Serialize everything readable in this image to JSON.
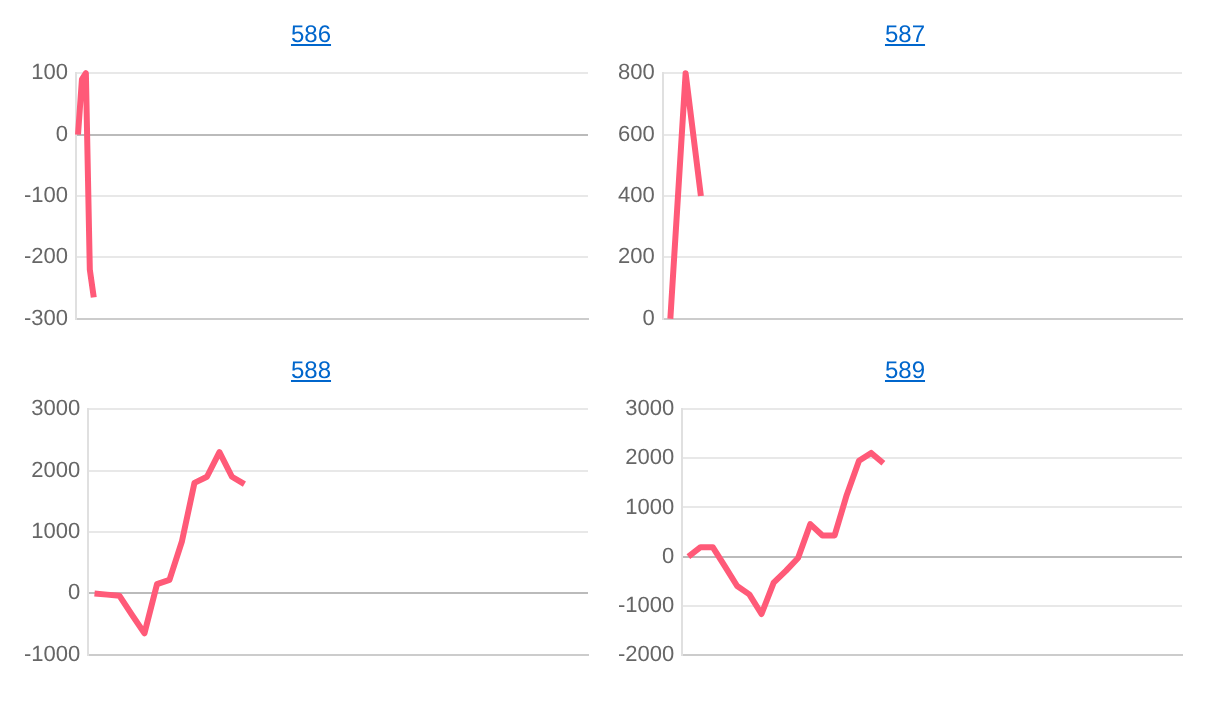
{
  "chart_data": [
    {
      "type": "line",
      "title": "586",
      "categories": [
        null,
        null,
        null,
        null,
        null,
        null,
        null,
        null,
        null,
        null,
        null,
        null,
        null,
        null,
        null,
        null,
        null,
        null,
        null,
        null,
        null,
        null,
        null,
        null,
        null,
        null,
        null,
        null,
        null,
        null,
        null,
        null,
        null,
        null,
        null,
        null,
        null,
        null,
        null,
        null,
        null,
        null,
        null,
        null,
        null,
        null,
        null,
        null,
        null,
        null,
        null,
        null,
        null,
        null,
        null,
        null,
        null,
        null,
        null,
        null,
        null,
        null,
        null,
        null,
        null,
        null,
        null,
        null,
        null,
        null,
        null,
        null,
        null,
        null,
        null,
        null,
        null,
        null,
        null,
        null,
        null,
        null,
        null,
        null,
        null,
        null,
        null,
        null,
        null,
        null,
        null,
        null,
        null,
        null,
        null,
        null,
        null,
        null,
        null,
        null,
        null,
        null,
        null,
        null,
        null,
        null,
        null,
        null,
        null,
        null,
        null,
        null,
        null,
        null,
        null,
        null,
        null,
        null,
        null,
        null,
        null,
        null,
        null,
        null,
        null,
        null,
        null,
        null,
        null,
        null
      ],
      "series": [
        {
          "color": "#ff5a78",
          "values": [
            0,
            90,
            100,
            -220,
            -265,
            null,
            null,
            null,
            null,
            null,
            null,
            null,
            null,
            null,
            null,
            null,
            null,
            null,
            null,
            null,
            null,
            null,
            null,
            null,
            null,
            null,
            null,
            null,
            null,
            null,
            null,
            null,
            null,
            null,
            null,
            null,
            null,
            null,
            null,
            null,
            null,
            null,
            null,
            null,
            null,
            null,
            null,
            null,
            null,
            null,
            null,
            null,
            null,
            null,
            null,
            null,
            null,
            null,
            null,
            null,
            null,
            null,
            null,
            null,
            null,
            null,
            null,
            null,
            null,
            null,
            null,
            null,
            null,
            null,
            null,
            null,
            null,
            null,
            null,
            null,
            null,
            null,
            null,
            null,
            null,
            null,
            null,
            null,
            null,
            null,
            null,
            null,
            null,
            null,
            null,
            null,
            null,
            null,
            null,
            null,
            null,
            null,
            null,
            null,
            null,
            null,
            null,
            null,
            null,
            null,
            null,
            null,
            null,
            null,
            null,
            null,
            null,
            null,
            null,
            null,
            null,
            null,
            null,
            null,
            null,
            null,
            null,
            null,
            null,
            null
          ]
        }
      ],
      "ylim": [
        -300,
        100
      ],
      "yticks": [
        -300,
        -200,
        -100,
        0,
        100
      ],
      "grid": "y",
      "legend": false,
      "marker": "none",
      "line_style": "solid"
    },
    {
      "type": "line",
      "title": "587",
      "categories": [
        null,
        null,
        null,
        null,
        null,
        null,
        null,
        null,
        null,
        null,
        null,
        null,
        null,
        null,
        null,
        null,
        null,
        null,
        null,
        null,
        null,
        null,
        null,
        null,
        null,
        null,
        null,
        null,
        null,
        null,
        null,
        null,
        null,
        null
      ],
      "series": [
        {
          "color": "#ff5a78",
          "values": [
            0,
            800,
            400,
            null,
            null,
            null,
            null,
            null,
            null,
            null,
            null,
            null,
            null,
            null,
            null,
            null,
            null,
            null,
            null,
            null,
            null,
            null,
            null,
            null,
            null,
            null,
            null,
            null,
            null,
            null,
            null,
            null,
            null,
            null
          ]
        }
      ],
      "ylim": [
        0,
        800
      ],
      "yticks": [
        0,
        200,
        400,
        600,
        800
      ],
      "grid": "y",
      "legend": false,
      "marker": "none",
      "line_style": "solid"
    },
    {
      "type": "line",
      "title": "588",
      "categories": [
        null,
        null,
        null,
        null,
        null,
        null,
        null,
        null,
        null,
        null,
        null,
        null,
        null,
        null,
        null,
        null,
        null,
        null,
        null,
        null,
        null,
        null,
        null,
        null,
        null,
        null,
        null,
        null,
        null,
        null,
        null,
        null,
        null,
        null,
        null,
        null,
        null,
        null,
        null,
        null
      ],
      "series": [
        {
          "color": "#ff5a78",
          "values": [
            0,
            -20,
            -40,
            -350,
            -650,
            150,
            220,
            850,
            1800,
            1900,
            2300,
            1900,
            1780,
            null,
            null,
            null,
            null,
            null,
            null,
            null,
            null,
            null,
            null,
            null,
            null,
            null,
            null,
            null,
            null,
            null,
            null,
            null,
            null,
            null,
            null,
            null,
            null,
            null,
            null,
            null
          ]
        }
      ],
      "ylim": [
        -1000,
        3000
      ],
      "yticks": [
        -1000,
        0,
        1000,
        2000,
        3000
      ],
      "grid": "y",
      "legend": false,
      "marker": "none",
      "line_style": "solid"
    },
    {
      "type": "line",
      "title": "589",
      "categories": [
        null,
        null,
        null,
        null,
        null,
        null,
        null,
        null,
        null,
        null,
        null,
        null,
        null,
        null,
        null,
        null,
        null,
        null,
        null,
        null,
        null,
        null,
        null,
        null,
        null,
        null,
        null,
        null,
        null,
        null,
        null,
        null,
        null,
        null,
        null,
        null,
        null,
        null,
        null,
        null,
        null
      ],
      "series": [
        {
          "color": "#ff5a78",
          "values": [
            0,
            190,
            190,
            -200,
            -600,
            -770,
            -1170,
            -530,
            -290,
            -30,
            660,
            430,
            430,
            1260,
            1950,
            2110,
            1900,
            null,
            null,
            null,
            null,
            null,
            null,
            null,
            null,
            null,
            null,
            null,
            null,
            null,
            null,
            null,
            null,
            null,
            null,
            null,
            null,
            null,
            null,
            null,
            null
          ]
        }
      ],
      "ylim": [
        -2000,
        3000
      ],
      "yticks": [
        -2000,
        -1000,
        0,
        1000,
        2000,
        3000
      ],
      "grid": "y",
      "legend": false,
      "marker": "none",
      "line_style": "solid"
    }
  ]
}
